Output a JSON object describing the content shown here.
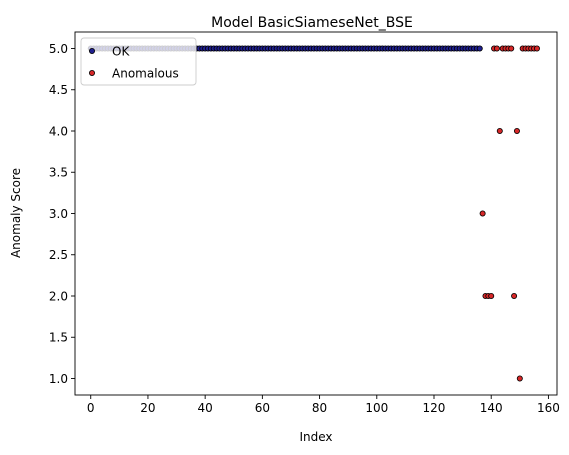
{
  "chart_data": {
    "type": "scatter",
    "title": "Model BasicSiameseNet_BSE",
    "xlabel": "Index",
    "ylabel": "Anomaly Score",
    "xlim": [
      -5.5,
      163
    ],
    "ylim": [
      0.8,
      5.2
    ],
    "xticks": [
      0,
      20,
      40,
      60,
      80,
      100,
      120,
      140,
      160
    ],
    "xtick_labels": [
      "0",
      "20",
      "40",
      "60",
      "80",
      "100",
      "120",
      "140",
      "160"
    ],
    "yticks": [
      1.0,
      1.5,
      2.0,
      2.5,
      3.0,
      3.5,
      4.0,
      4.5,
      5.0
    ],
    "ytick_labels": [
      "1.0",
      "1.5",
      "2.0",
      "2.5",
      "3.0",
      "3.5",
      "4.0",
      "4.5",
      "5.0"
    ],
    "grid": false,
    "legend_position": "top-left",
    "series": [
      {
        "name": "OK",
        "color": "#1f1f8f",
        "x_range": [
          0,
          136
        ],
        "y_constant": 5.0
      },
      {
        "name": "Anomalous",
        "color": "#d62728",
        "points": [
          [
            137,
            3.0
          ],
          [
            138,
            2.0
          ],
          [
            139,
            2.0
          ],
          [
            140,
            2.0
          ],
          [
            141,
            5.0
          ],
          [
            142,
            5.0
          ],
          [
            143,
            4.0
          ],
          [
            144,
            5.0
          ],
          [
            145,
            5.0
          ],
          [
            146,
            5.0
          ],
          [
            147,
            5.0
          ],
          [
            148,
            2.0
          ],
          [
            149,
            4.0
          ],
          [
            150,
            1.0
          ],
          [
            151,
            5.0
          ],
          [
            152,
            5.0
          ],
          [
            153,
            5.0
          ],
          [
            154,
            5.0
          ],
          [
            155,
            5.0
          ],
          [
            156,
            5.0
          ]
        ]
      }
    ]
  }
}
